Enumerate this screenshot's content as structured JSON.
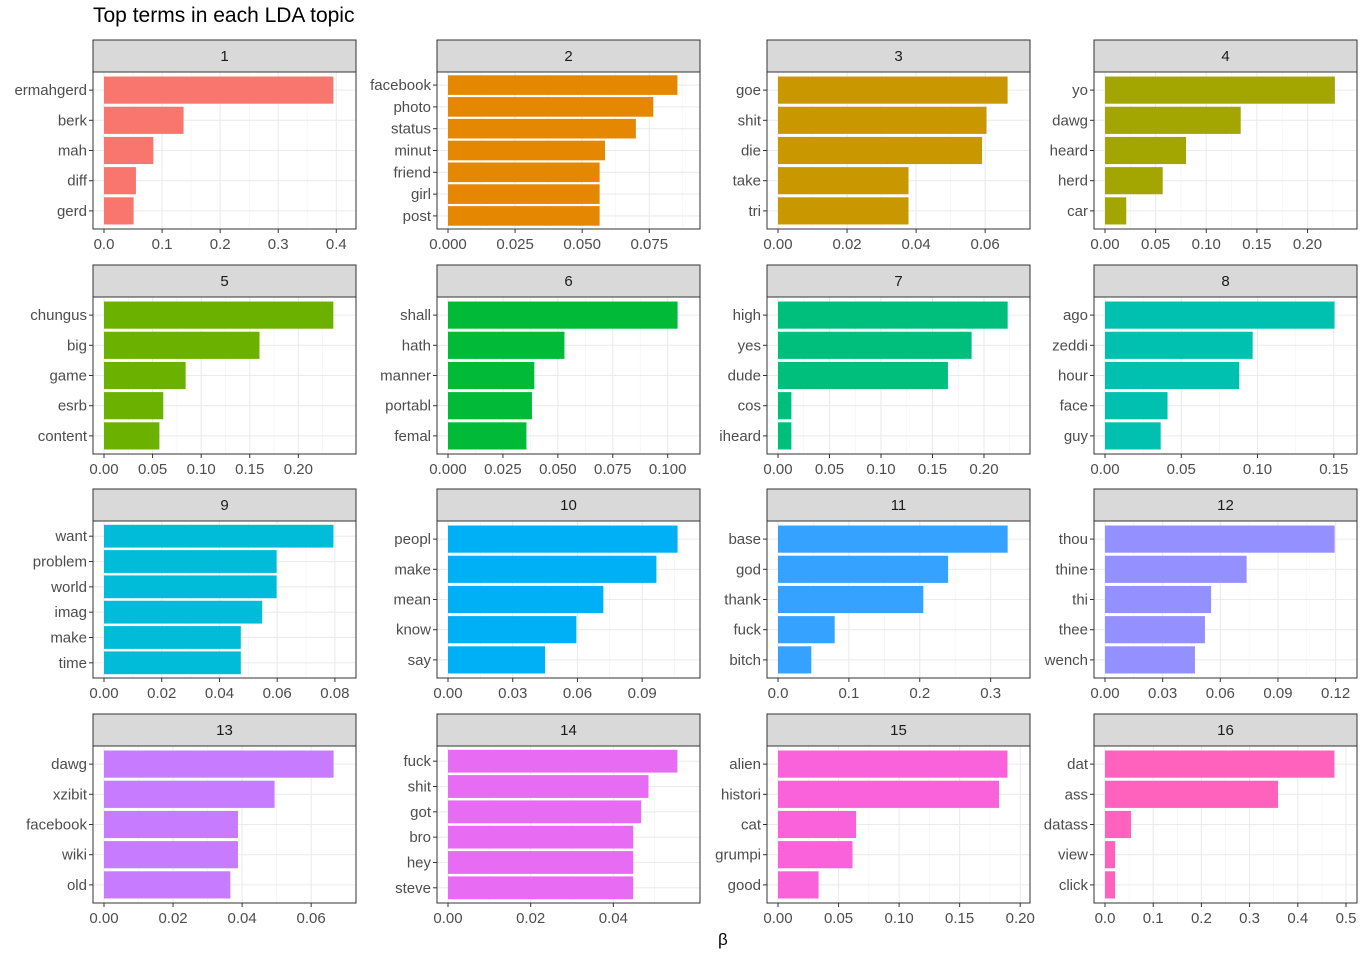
{
  "chart_data": {
    "type": "bar",
    "title": "Top terms in each LDA topic",
    "xlabel": "β",
    "ylabel": "",
    "grid": true,
    "legend": "none",
    "panels": [
      {
        "label": "1",
        "color": "#F8766D",
        "terms": [
          "ermahgerd",
          "berk",
          "mah",
          "diff",
          "gerd"
        ],
        "values": [
          0.395,
          0.137,
          0.085,
          0.055,
          0.051
        ],
        "xlim": [
          0,
          0.415
        ],
        "ticks": [
          0.0,
          0.1,
          0.2,
          0.3,
          0.4
        ],
        "tick_labels": [
          "0.0",
          "0.1",
          "0.2",
          "0.3",
          "0.4"
        ]
      },
      {
        "label": "2",
        "color": "#E58700",
        "terms": [
          "facebook",
          "photo",
          "status",
          "minut",
          "friend",
          "girl",
          "post"
        ],
        "values": [
          0.0855,
          0.0765,
          0.07,
          0.0585,
          0.0565,
          0.0565,
          0.0565
        ],
        "xlim": [
          0,
          0.0898
        ],
        "ticks": [
          0,
          0.025,
          0.05,
          0.075
        ],
        "tick_labels": [
          "0.000",
          "0.025",
          "0.050",
          "0.075"
        ]
      },
      {
        "label": "3",
        "color": "#C99800",
        "terms": [
          "goe",
          "shit",
          "die",
          "take",
          "tri"
        ],
        "values": [
          0.0665,
          0.0604,
          0.0591,
          0.0378,
          0.0378
        ],
        "xlim": [
          0,
          0.0698
        ],
        "ticks": [
          0,
          0.02,
          0.04,
          0.06
        ],
        "tick_labels": [
          "0.00",
          "0.02",
          "0.04",
          "0.06"
        ]
      },
      {
        "label": "4",
        "color": "#A3A500",
        "terms": [
          "yo",
          "dawg",
          "heard",
          "herd",
          "car"
        ],
        "values": [
          0.227,
          0.134,
          0.08,
          0.057,
          0.021
        ],
        "xlim": [
          0,
          0.238
        ],
        "ticks": [
          0,
          0.05,
          0.1,
          0.15,
          0.2
        ],
        "tick_labels": [
          "0.00",
          "0.05",
          "0.10",
          "0.15",
          "0.20"
        ]
      },
      {
        "label": "5",
        "color": "#6BB100",
        "terms": [
          "chungus",
          "big",
          "game",
          "esrb",
          "content"
        ],
        "values": [
          0.236,
          0.16,
          0.084,
          0.061,
          0.057
        ],
        "xlim": [
          0,
          0.248
        ],
        "ticks": [
          0,
          0.05,
          0.1,
          0.15,
          0.2
        ],
        "tick_labels": [
          "0.00",
          "0.05",
          "0.10",
          "0.15",
          "0.20"
        ]
      },
      {
        "label": "6",
        "color": "#00BA38",
        "terms": [
          "shall",
          "hath",
          "manner",
          "portabl",
          "femal"
        ],
        "values": [
          0.1045,
          0.053,
          0.0393,
          0.0382,
          0.0357
        ],
        "xlim": [
          0,
          0.1097
        ],
        "ticks": [
          0,
          0.025,
          0.05,
          0.075,
          0.1
        ],
        "tick_labels": [
          "0.000",
          "0.025",
          "0.050",
          "0.075",
          "0.100"
        ]
      },
      {
        "label": "7",
        "color": "#00BF7D",
        "terms": [
          "high",
          "yes",
          "dude",
          "cos",
          "iheard"
        ],
        "values": [
          0.223,
          0.188,
          0.165,
          0.013,
          0.013
        ],
        "xlim": [
          0,
          0.234
        ],
        "ticks": [
          0,
          0.05,
          0.1,
          0.15,
          0.2
        ],
        "tick_labels": [
          "0.00",
          "0.05",
          "0.10",
          "0.15",
          "0.20"
        ]
      },
      {
        "label": "8",
        "color": "#00C0AF",
        "terms": [
          "ago",
          "zeddi",
          "hour",
          "face",
          "guy"
        ],
        "values": [
          0.1505,
          0.0968,
          0.088,
          0.041,
          0.0365
        ],
        "xlim": [
          0,
          0.158
        ],
        "ticks": [
          0,
          0.05,
          0.1,
          0.15
        ],
        "tick_labels": [
          "0.00",
          "0.05",
          "0.10",
          "0.15"
        ]
      },
      {
        "label": "9",
        "color": "#00BCD8",
        "terms": [
          "want",
          "problem",
          "world",
          "imag",
          "make",
          "time"
        ],
        "values": [
          0.0795,
          0.0598,
          0.0598,
          0.0548,
          0.0474,
          0.0474
        ],
        "xlim": [
          0,
          0.0835
        ],
        "ticks": [
          0,
          0.02,
          0.04,
          0.06,
          0.08
        ],
        "tick_labels": [
          "0.00",
          "0.02",
          "0.04",
          "0.06",
          "0.08"
        ]
      },
      {
        "label": "10",
        "color": "#00B0F6",
        "terms": [
          "peopl",
          "make",
          "mean",
          "know",
          "say"
        ],
        "values": [
          0.1064,
          0.0966,
          0.072,
          0.0595,
          0.045
        ],
        "xlim": [
          0,
          0.1117
        ],
        "ticks": [
          0,
          0.03,
          0.06,
          0.09
        ],
        "tick_labels": [
          "0.00",
          "0.03",
          "0.06",
          "0.09"
        ]
      },
      {
        "label": "11",
        "color": "#35A2FF",
        "terms": [
          "base",
          "god",
          "thank",
          "fuck",
          "bitch"
        ],
        "values": [
          0.324,
          0.24,
          0.205,
          0.08,
          0.047
        ],
        "xlim": [
          0,
          0.34
        ],
        "ticks": [
          0,
          0.1,
          0.2,
          0.3
        ],
        "tick_labels": [
          "0.0",
          "0.1",
          "0.2",
          "0.3"
        ]
      },
      {
        "label": "12",
        "color": "#9590FF",
        "terms": [
          "thou",
          "thine",
          "thi",
          "thee",
          "wench"
        ],
        "values": [
          0.1195,
          0.0737,
          0.0552,
          0.052,
          0.0468
        ],
        "xlim": [
          0,
          0.1254
        ],
        "ticks": [
          0,
          0.03,
          0.06,
          0.09,
          0.12
        ],
        "tick_labels": [
          "0.00",
          "0.03",
          "0.06",
          "0.09",
          "0.12"
        ]
      },
      {
        "label": "13",
        "color": "#C77CFF",
        "terms": [
          "dawg",
          "xzibit",
          "facebook",
          "wiki",
          "old"
        ],
        "values": [
          0.0665,
          0.0494,
          0.0388,
          0.0388,
          0.0366
        ],
        "xlim": [
          0,
          0.0698
        ],
        "ticks": [
          0,
          0.02,
          0.04,
          0.06
        ],
        "tick_labels": [
          "0.00",
          "0.02",
          "0.04",
          "0.06"
        ]
      },
      {
        "label": "14",
        "color": "#E76BF3",
        "terms": [
          "fuck",
          "shit",
          "got",
          "bro",
          "hey",
          "steve"
        ],
        "values": [
          0.0555,
          0.0485,
          0.0467,
          0.0448,
          0.0448,
          0.0448
        ],
        "xlim": [
          0,
          0.0583
        ],
        "ticks": [
          0,
          0.02,
          0.04
        ],
        "tick_labels": [
          "0.00",
          "0.02",
          "0.04"
        ]
      },
      {
        "label": "15",
        "color": "#FA62DB",
        "terms": [
          "alien",
          "histori",
          "cat",
          "grumpi",
          "good"
        ],
        "values": [
          0.1895,
          0.1825,
          0.0645,
          0.0615,
          0.0335
        ],
        "xlim": [
          0,
          0.199
        ],
        "ticks": [
          0,
          0.05,
          0.1,
          0.15,
          0.2
        ],
        "tick_labels": [
          "0.00",
          "0.05",
          "0.10",
          "0.15",
          "0.20"
        ]
      },
      {
        "label": "16",
        "color": "#FF62BC",
        "terms": [
          "dat",
          "ass",
          "datass",
          "view",
          "click"
        ],
        "values": [
          0.476,
          0.359,
          0.054,
          0.021,
          0.021
        ],
        "xlim": [
          0,
          0.5
        ],
        "ticks": [
          0,
          0.1,
          0.2,
          0.3,
          0.4,
          0.5
        ],
        "tick_labels": [
          "0.0",
          "0.1",
          "0.2",
          "0.3",
          "0.4",
          "0.5"
        ]
      }
    ]
  }
}
